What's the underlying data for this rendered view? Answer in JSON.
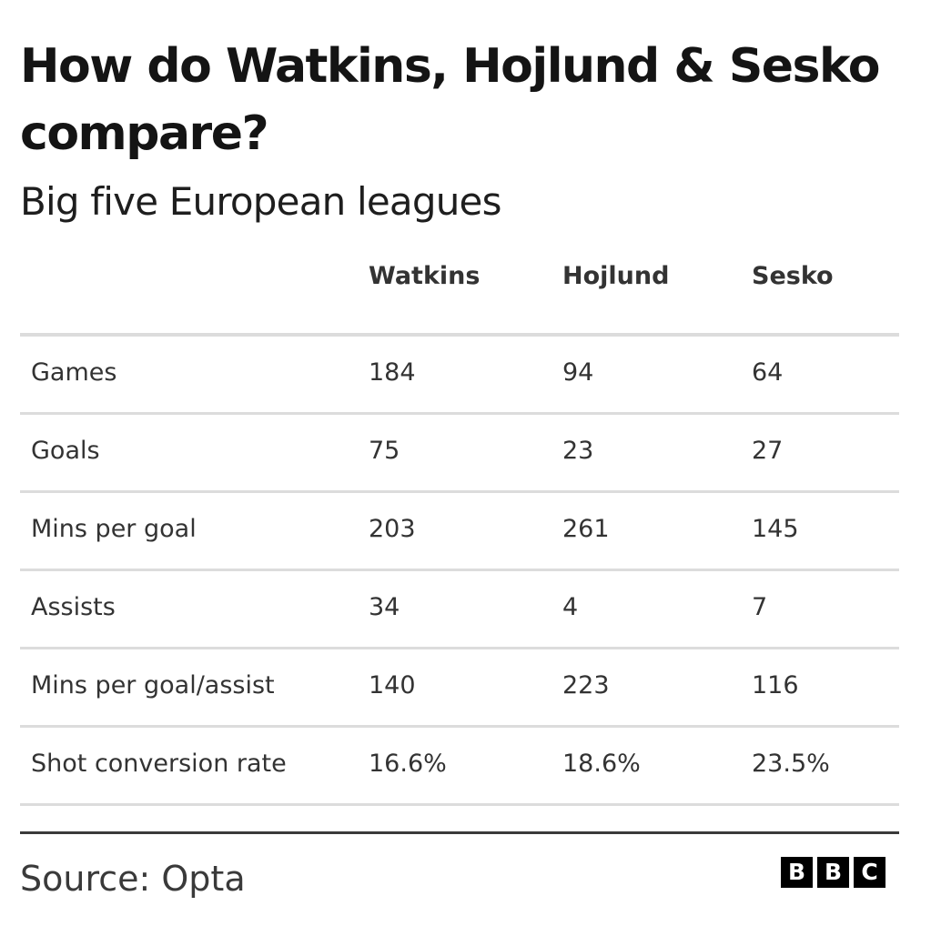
{
  "chart_data": {
    "type": "table",
    "title": "How do Watkins, Hojlund & Sesko compare?",
    "subtitle": "Big five European leagues",
    "columns": [
      "",
      "Watkins",
      "Hojlund",
      "Sesko"
    ],
    "rows": [
      {
        "label": "Games",
        "values": [
          "184",
          "94",
          "64"
        ]
      },
      {
        "label": "Goals",
        "values": [
          "75",
          "23",
          "27"
        ]
      },
      {
        "label": "Mins per goal",
        "values": [
          "203",
          "261",
          "145"
        ]
      },
      {
        "label": "Assists",
        "values": [
          "34",
          "4",
          "7"
        ]
      },
      {
        "label": "Mins per goal/assist",
        "values": [
          "140",
          "223",
          "116"
        ]
      },
      {
        "label": "Shot conversion rate",
        "values": [
          "16.6%",
          "18.6%",
          "23.5%"
        ]
      }
    ]
  },
  "footer": {
    "source": "Source: Opta",
    "logo_letters": [
      "B",
      "B",
      "C"
    ]
  }
}
